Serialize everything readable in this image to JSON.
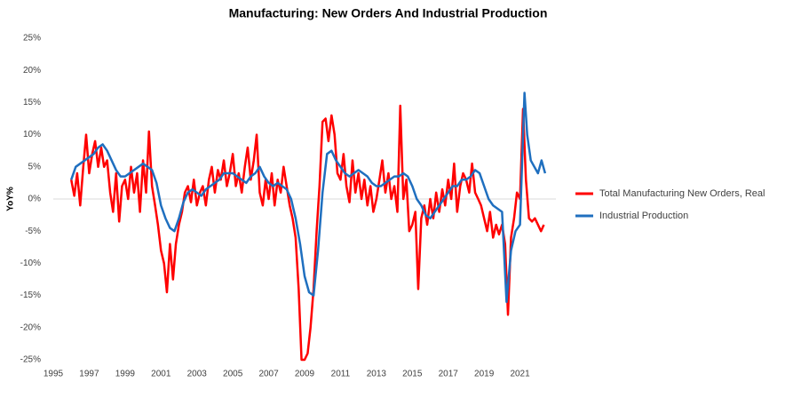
{
  "chart_data": {
    "type": "line",
    "title": "Manufacturing: New Orders And Industrial Production",
    "y_label": "YoY%",
    "legend": "right",
    "xlim": [
      1995,
      2023
    ],
    "xticks": [
      1995,
      1997,
      1999,
      2001,
      2003,
      2005,
      2007,
      2009,
      2011,
      2013,
      2015,
      2017,
      2019,
      2021
    ],
    "ylim": [
      -25,
      25
    ],
    "yticks": [
      {
        "value": -25,
        "label": "-25%"
      },
      {
        "value": -20,
        "label": "-20%"
      },
      {
        "value": -15,
        "label": "-15%"
      },
      {
        "value": -10,
        "label": "-10%"
      },
      {
        "value": -5,
        "label": "-5%"
      },
      {
        "value": 0,
        "label": "0%"
      },
      {
        "value": 5,
        "label": "5%"
      },
      {
        "value": 10,
        "label": "10%"
      },
      {
        "value": 15,
        "label": "15%"
      },
      {
        "value": 20,
        "label": "20%"
      },
      {
        "value": 25,
        "label": "25%"
      }
    ],
    "series": [
      {
        "name": "Total Manufacturing New Orders, Real",
        "color": "#ff0000",
        "x": [
          1996.0,
          1996.17,
          1996.33,
          1996.5,
          1996.67,
          1996.83,
          1997.0,
          1997.17,
          1997.33,
          1997.5,
          1997.67,
          1997.83,
          1998.0,
          1998.17,
          1998.33,
          1998.5,
          1998.67,
          1998.83,
          1999.0,
          1999.17,
          1999.33,
          1999.5,
          1999.67,
          1999.83,
          2000.0,
          2000.17,
          2000.33,
          2000.5,
          2000.67,
          2000.83,
          2001.0,
          2001.17,
          2001.33,
          2001.5,
          2001.67,
          2001.83,
          2002.0,
          2002.17,
          2002.33,
          2002.5,
          2002.67,
          2002.83,
          2003.0,
          2003.17,
          2003.33,
          2003.5,
          2003.67,
          2003.83,
          2004.0,
          2004.17,
          2004.33,
          2004.5,
          2004.67,
          2004.83,
          2005.0,
          2005.17,
          2005.33,
          2005.5,
          2005.67,
          2005.83,
          2006.0,
          2006.17,
          2006.33,
          2006.5,
          2006.67,
          2006.83,
          2007.0,
          2007.17,
          2007.33,
          2007.5,
          2007.67,
          2007.83,
          2008.0,
          2008.17,
          2008.33,
          2008.5,
          2008.67,
          2008.83,
          2009.0,
          2009.17,
          2009.33,
          2009.5,
          2009.67,
          2009.83,
          2010.0,
          2010.17,
          2010.33,
          2010.5,
          2010.67,
          2010.83,
          2011.0,
          2011.17,
          2011.33,
          2011.5,
          2011.67,
          2011.83,
          2012.0,
          2012.17,
          2012.33,
          2012.5,
          2012.67,
          2012.83,
          2013.0,
          2013.17,
          2013.33,
          2013.5,
          2013.67,
          2013.83,
          2014.0,
          2014.17,
          2014.33,
          2014.5,
          2014.67,
          2014.83,
          2015.0,
          2015.17,
          2015.33,
          2015.5,
          2015.67,
          2015.83,
          2016.0,
          2016.17,
          2016.33,
          2016.5,
          2016.67,
          2016.83,
          2017.0,
          2017.17,
          2017.33,
          2017.5,
          2017.67,
          2017.83,
          2018.0,
          2018.17,
          2018.33,
          2018.5,
          2018.67,
          2018.83,
          2019.0,
          2019.17,
          2019.33,
          2019.5,
          2019.67,
          2019.83,
          2020.0,
          2020.17,
          2020.33,
          2020.5,
          2020.67,
          2020.83,
          2021.0,
          2021.17,
          2021.33,
          2021.5,
          2021.67,
          2021.83,
          2022.0,
          2022.17,
          2022.33
        ],
        "values": [
          3,
          0.5,
          4,
          -1,
          5,
          10,
          4,
          7,
          9,
          5,
          8,
          5,
          6,
          1,
          -2,
          4,
          -3.5,
          2,
          3,
          0,
          5,
          1,
          4,
          -2,
          6,
          1,
          10.5,
          2,
          -1,
          -4,
          -8,
          -10,
          -14.5,
          -7,
          -12.5,
          -7,
          -4,
          -2,
          1,
          2,
          -0.5,
          3,
          -1,
          1,
          2,
          -1,
          3,
          5,
          1,
          4.5,
          3,
          6,
          2,
          4,
          7,
          2,
          4,
          1,
          5,
          8,
          3,
          6,
          10,
          1,
          -1,
          3,
          0,
          4,
          -1,
          3,
          1,
          5,
          2,
          -1,
          -3,
          -6,
          -14,
          -25,
          -25,
          -24,
          -20,
          -14,
          -5,
          2,
          12,
          12.5,
          9,
          13,
          10,
          4,
          3,
          7,
          2,
          -0.5,
          6,
          1,
          4,
          0,
          3,
          -1,
          2,
          -2,
          0,
          3,
          6,
          1,
          4,
          0,
          2,
          -2,
          14.5,
          0,
          3,
          -5,
          -4,
          -2,
          -14,
          -3,
          -1,
          -4,
          0,
          -3,
          1,
          -2,
          1.5,
          -1,
          3,
          0,
          5.5,
          -2,
          2,
          4,
          3,
          1,
          5.5,
          1,
          0,
          -1,
          -3,
          -5,
          -2,
          -6,
          -4,
          -5.5,
          -4,
          -7,
          -18,
          -6,
          -3,
          1,
          0,
          14,
          3,
          -3,
          -3.5,
          -3,
          -4,
          -5,
          -4
        ]
      },
      {
        "name": "Industrial Production",
        "color": "#1f6fbf",
        "x": [
          1996.0,
          1996.25,
          1996.5,
          1996.75,
          1997.0,
          1997.25,
          1997.5,
          1997.75,
          1998.0,
          1998.25,
          1998.5,
          1998.75,
          1999.0,
          1999.25,
          1999.5,
          1999.75,
          2000.0,
          2000.25,
          2000.5,
          2000.75,
          2001.0,
          2001.25,
          2001.5,
          2001.75,
          2002.0,
          2002.25,
          2002.5,
          2002.75,
          2003.0,
          2003.25,
          2003.5,
          2003.75,
          2004.0,
          2004.25,
          2004.5,
          2004.75,
          2005.0,
          2005.25,
          2005.5,
          2005.75,
          2006.0,
          2006.25,
          2006.5,
          2006.75,
          2007.0,
          2007.25,
          2007.5,
          2007.75,
          2008.0,
          2008.25,
          2008.5,
          2008.75,
          2009.0,
          2009.25,
          2009.5,
          2009.75,
          2010.0,
          2010.25,
          2010.5,
          2010.75,
          2011.0,
          2011.25,
          2011.5,
          2011.75,
          2012.0,
          2012.25,
          2012.5,
          2012.75,
          2013.0,
          2013.25,
          2013.5,
          2013.75,
          2014.0,
          2014.25,
          2014.5,
          2014.75,
          2015.0,
          2015.25,
          2015.5,
          2015.75,
          2016.0,
          2016.25,
          2016.5,
          2016.75,
          2017.0,
          2017.25,
          2017.5,
          2017.75,
          2018.0,
          2018.25,
          2018.5,
          2018.75,
          2019.0,
          2019.25,
          2019.5,
          2019.75,
          2020.0,
          2020.25,
          2020.5,
          2020.75,
          2021.0,
          2021.25,
          2021.4,
          2021.6,
          2021.8,
          2022.0,
          2022.2,
          2022.4
        ],
        "values": [
          3,
          5,
          5.5,
          6,
          6.5,
          7,
          8,
          8.5,
          7.5,
          6,
          4.5,
          3.5,
          3.5,
          4,
          4.5,
          5,
          5.5,
          5,
          4.5,
          2.5,
          -1,
          -3,
          -4.5,
          -5,
          -3,
          -0.5,
          1,
          1.5,
          1,
          0.5,
          1.5,
          2,
          2.5,
          3,
          4,
          4,
          4,
          3.5,
          3,
          2.5,
          3.5,
          4,
          5,
          3.5,
          2.5,
          2,
          2.5,
          2,
          1.5,
          0,
          -3,
          -7,
          -12,
          -14.5,
          -15,
          -8,
          1,
          7,
          7.5,
          6,
          5,
          4,
          3.5,
          4,
          4.5,
          4,
          3.5,
          2.5,
          2,
          2,
          2.5,
          3,
          3.5,
          3.5,
          4,
          3.5,
          2,
          0,
          -1,
          -2.5,
          -3,
          -2,
          -1,
          0,
          1,
          2,
          2,
          3,
          3,
          3.5,
          4.5,
          4,
          2,
          0,
          -1,
          -1.5,
          -2,
          -16,
          -8,
          -5,
          -4,
          16.5,
          10,
          6,
          5,
          4,
          6,
          4
        ]
      }
    ]
  }
}
